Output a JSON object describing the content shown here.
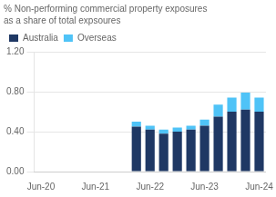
{
  "chart_data": {
    "type": "bar",
    "title": "% Non-performing commercial property exposures",
    "subtitle": "as a share of total expsoures",
    "categories": [
      "Jun-20",
      null,
      null,
      null,
      "Jun-21",
      null,
      null,
      null,
      "Jun-22",
      null,
      null,
      null,
      "Jun-23",
      null,
      null,
      null,
      "Jun-24"
    ],
    "series": [
      {
        "name": "Australia",
        "color": "#1f3864",
        "values": [
          null,
          null,
          null,
          null,
          null,
          null,
          null,
          0.45,
          0.42,
          0.38,
          0.4,
          0.42,
          0.46,
          0.55,
          0.6,
          0.62,
          0.6
        ]
      },
      {
        "name": "Overseas",
        "color": "#4fc3f7",
        "values": [
          null,
          null,
          null,
          null,
          null,
          null,
          null,
          0.05,
          0.04,
          0.04,
          0.04,
          0.04,
          0.06,
          0.12,
          0.14,
          0.17,
          0.14
        ]
      }
    ],
    "stacked": true,
    "ylim": [
      0,
      1.2
    ],
    "yticks": [
      {
        "value": 0,
        "label": "0.00"
      },
      {
        "value": 0.4,
        "label": "0.40"
      },
      {
        "value": 0.8,
        "label": "0.80"
      },
      {
        "value": 1.2,
        "label": "1.20"
      }
    ],
    "grid": true,
    "legend": "upper left"
  }
}
